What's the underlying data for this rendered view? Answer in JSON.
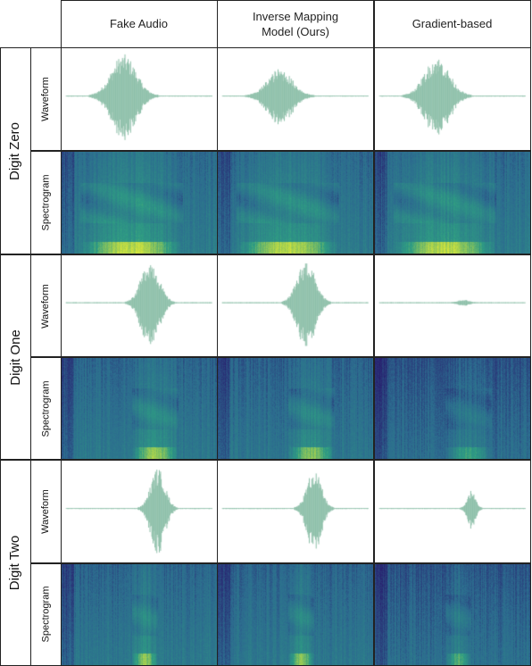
{
  "columns": [
    "Fake Audio",
    "Inverse Mapping Model (Ours)",
    "Gradient-based"
  ],
  "column_lines": [
    [
      "Fake Audio"
    ],
    [
      "Inverse Mapping",
      "Model (Ours)"
    ],
    [
      "Gradient-based"
    ]
  ],
  "rows": [
    {
      "label": "Digit Zero",
      "waveform_label": "Waveform",
      "spectrogram_label": "Spectrogram",
      "waveforms": [
        {
          "center": 0.4,
          "width": 0.28,
          "amp": 0.95,
          "asym": 0.55
        },
        {
          "center": 0.4,
          "width": 0.28,
          "amp": 0.62,
          "asym": 0.55
        },
        {
          "center": 0.4,
          "width": 0.28,
          "amp": 0.88,
          "asym": 0.55
        }
      ],
      "spectrograms": [
        {
          "darkness": 0.0,
          "onset": 0.12,
          "offset": 0.78,
          "energy": 1.0
        },
        {
          "darkness": 0.05,
          "onset": 0.12,
          "offset": 0.78,
          "energy": 1.0
        },
        {
          "darkness": 0.05,
          "onset": 0.12,
          "offset": 0.78,
          "energy": 1.0
        }
      ]
    },
    {
      "label": "Digit One",
      "waveform_label": "Waveform",
      "spectrogram_label": "Spectrogram",
      "waveforms": [
        {
          "center": 0.57,
          "width": 0.2,
          "amp": 1.0,
          "asym": 0.5
        },
        {
          "center": 0.57,
          "width": 0.2,
          "amp": 1.0,
          "asym": 0.5
        },
        {
          "center": 0.57,
          "width": 0.12,
          "amp": 0.06,
          "asym": 0.5
        }
      ],
      "spectrograms": [
        {
          "darkness": 0.1,
          "onset": 0.45,
          "offset": 0.75,
          "energy": 0.9
        },
        {
          "darkness": 0.15,
          "onset": 0.45,
          "offset": 0.75,
          "energy": 0.85
        },
        {
          "darkness": 0.35,
          "onset": 0.45,
          "offset": 0.75,
          "energy": 0.6
        }
      ]
    },
    {
      "label": "Digit Two",
      "waveform_label": "Waveform",
      "spectrogram_label": "Spectrogram",
      "waveforms": [
        {
          "center": 0.62,
          "width": 0.16,
          "amp": 0.95,
          "asym": 0.45
        },
        {
          "center": 0.62,
          "width": 0.16,
          "amp": 0.92,
          "asym": 0.45
        },
        {
          "center": 0.62,
          "width": 0.09,
          "amp": 0.42,
          "asym": 0.45
        }
      ],
      "spectrograms": [
        {
          "darkness": 0.1,
          "onset": 0.45,
          "offset": 0.62,
          "energy": 0.85
        },
        {
          "darkness": 0.12,
          "onset": 0.45,
          "offset": 0.62,
          "energy": 0.85
        },
        {
          "darkness": 0.3,
          "onset": 0.45,
          "offset": 0.62,
          "energy": 0.7
        }
      ]
    }
  ],
  "colors": {
    "waveform": "#8cbfa8",
    "viridis_low": "#2c6b8f",
    "viridis_mid": "#2e9c83",
    "viridis_high": "#d7e63a",
    "grid_line": "#222222"
  }
}
